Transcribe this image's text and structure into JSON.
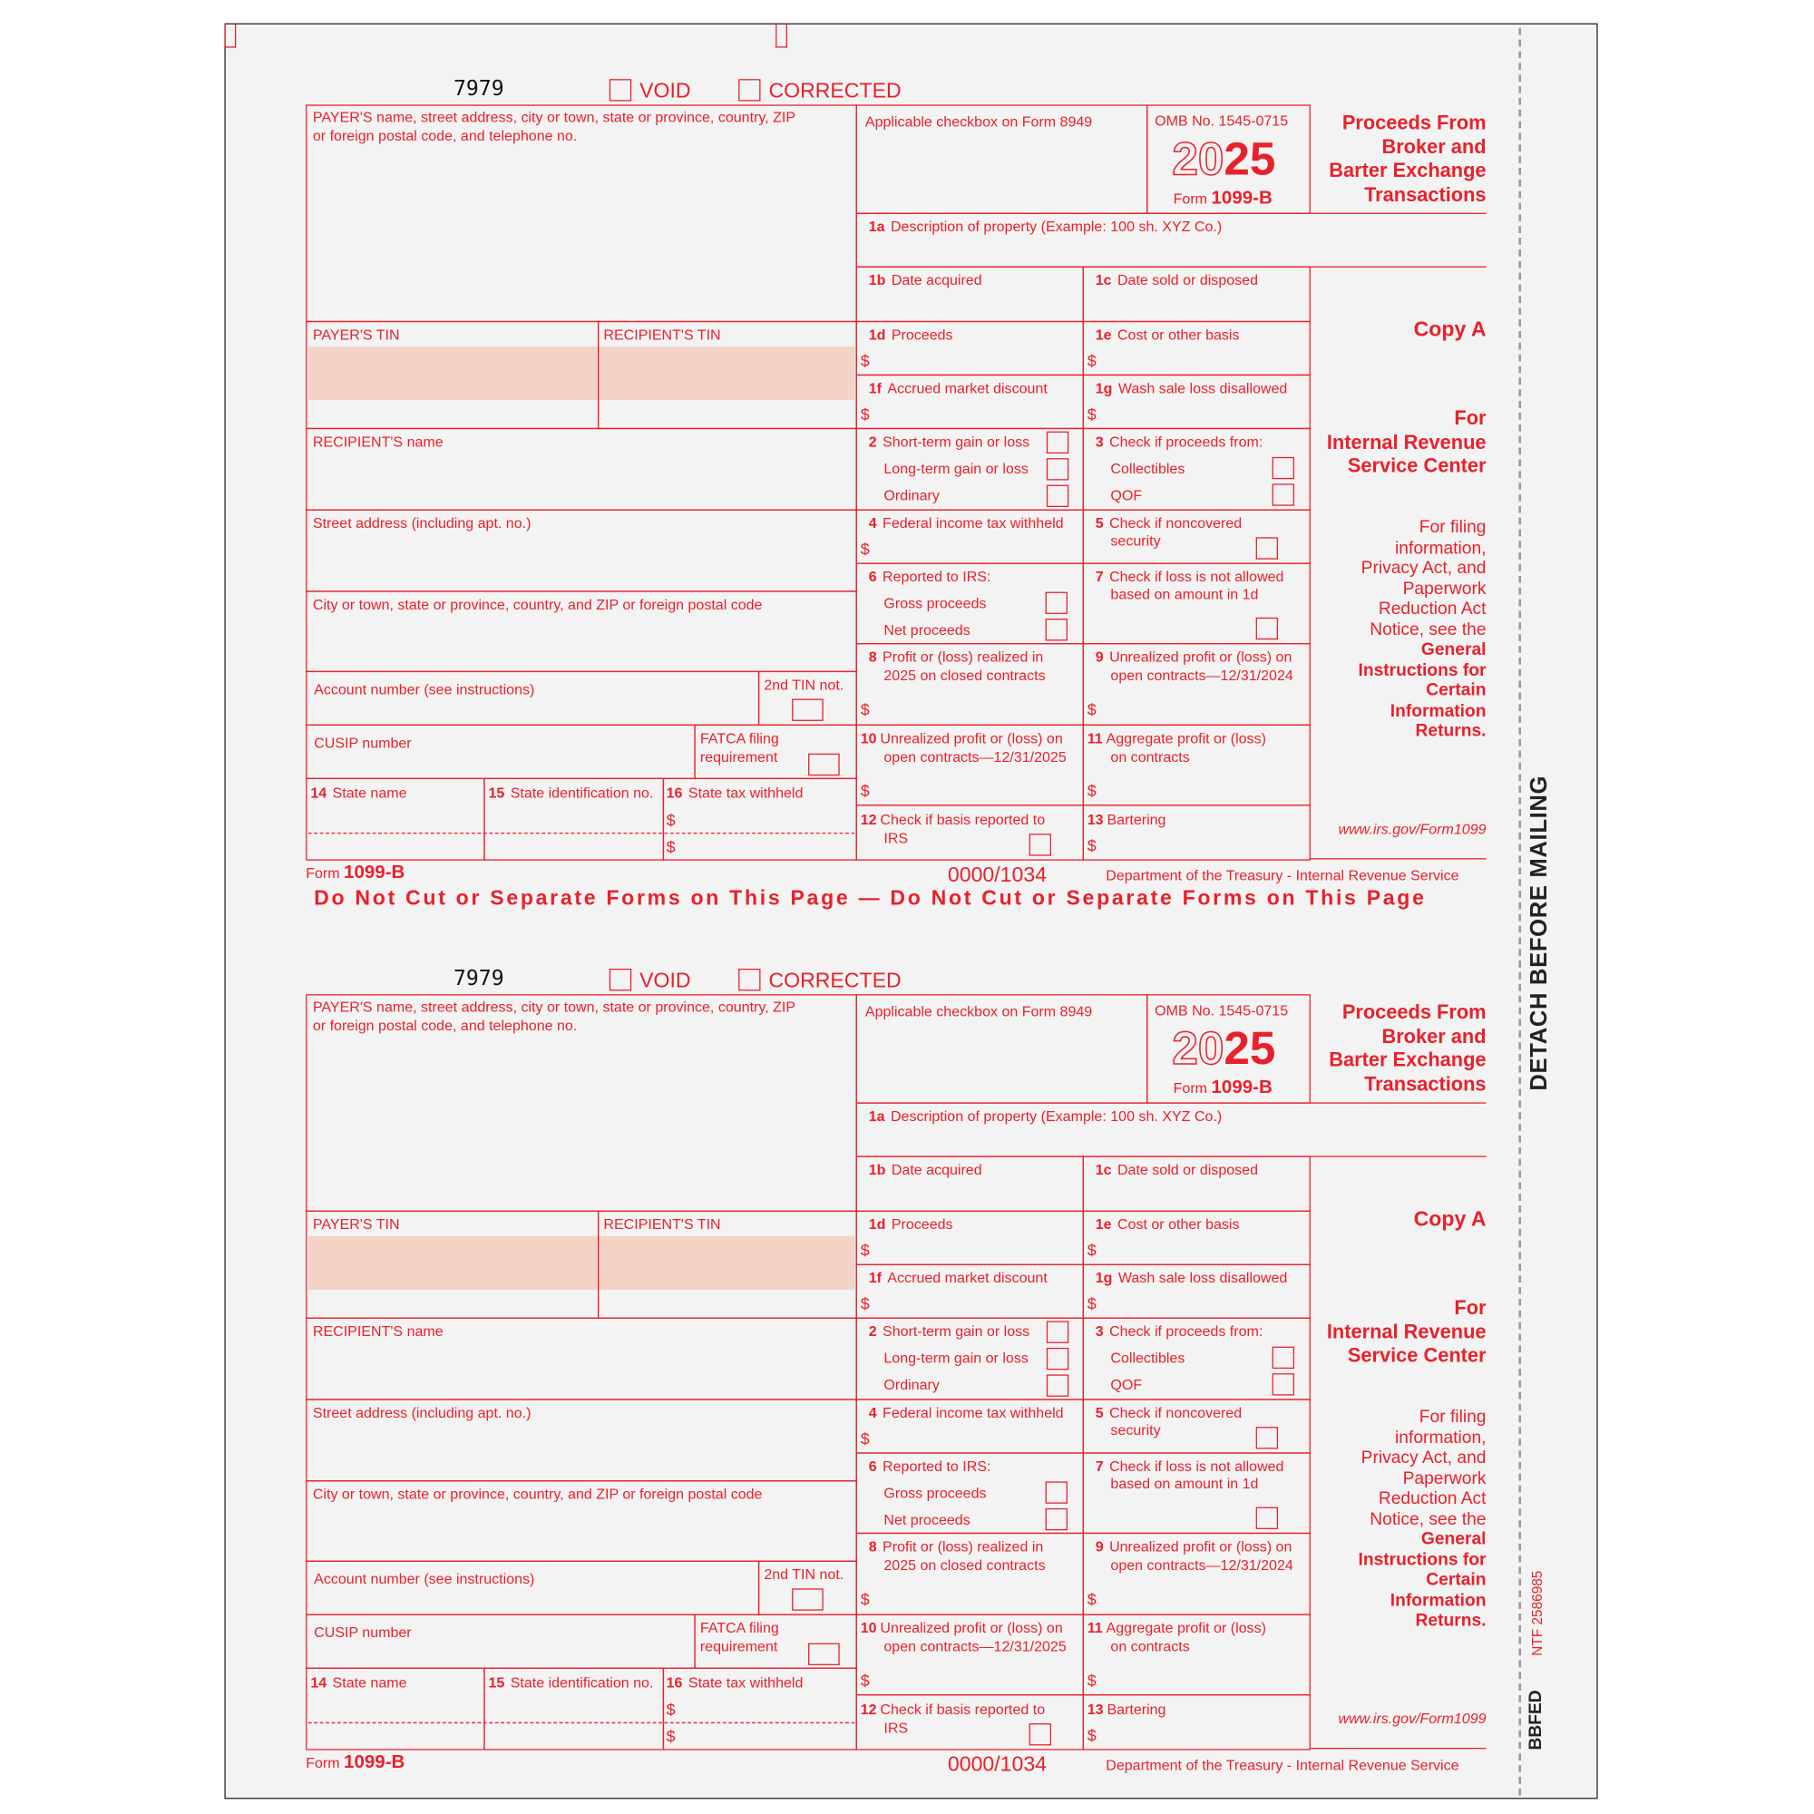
{
  "side": {
    "detach": "DETACH BEFORE MAILING",
    "ntf": "NTF 2586985",
    "code": "BBFED"
  },
  "warning": "Do Not Cut or Separate Forms on This Page — Do Not Cut or Separate Forms on This Page",
  "form": {
    "number": "7979",
    "void": "VOID",
    "corrected": "CORRECTED",
    "payer_name": [
      "PAYER'S name, street address, city or town, state or province, country, ZIP",
      "or foreign postal code, and telephone no."
    ],
    "payer_tin": "PAYER'S TIN",
    "recipient_tin": "RECIPIENT'S TIN",
    "recipient_name": "RECIPIENT'S name",
    "street": "Street address (including apt. no.)",
    "city": "City or town, state or province, country, and ZIP or foreign postal code",
    "account": "Account number (see instructions)",
    "tin2": "2nd TIN not.",
    "cusip": "CUSIP number",
    "fatca": [
      "FATCA filing",
      "requirement"
    ],
    "b14": {
      "n": "14",
      "l": "State name"
    },
    "b15": {
      "n": "15",
      "l": "State identification no."
    },
    "b16": {
      "n": "16",
      "l": "State tax withheld"
    },
    "applicable": "Applicable checkbox on Form 8949",
    "omb": "OMB No. 1545-0715",
    "year_a": "20",
    "year_b": "25",
    "form_word": "Form",
    "form_name": "1099-B",
    "b1a": {
      "n": "1a",
      "l": "Description of property (Example: 100 sh. XYZ Co.)"
    },
    "b1b": {
      "n": "1b",
      "l": "Date acquired"
    },
    "b1c": {
      "n": "1c",
      "l": "Date sold or disposed"
    },
    "b1d": {
      "n": "1d",
      "l": "Proceeds"
    },
    "b1e": {
      "n": "1e",
      "l": "Cost or other basis"
    },
    "b1f": {
      "n": "1f",
      "l": "Accrued market discount"
    },
    "b1g": {
      "n": "1g",
      "l": "Wash sale loss disallowed"
    },
    "b2": {
      "n": "2",
      "l": "Short-term gain or loss",
      "l2": "Long-term gain or loss",
      "l3": "Ordinary"
    },
    "b3": {
      "n": "3",
      "l": "Check if proceeds from:",
      "l2": "Collectibles",
      "l3": "QOF"
    },
    "b4": {
      "n": "4",
      "l": "Federal income tax withheld"
    },
    "b5": {
      "n": "5",
      "l": "Check if noncovered",
      "l2": "security"
    },
    "b6": {
      "n": "6",
      "l": "Reported to IRS:",
      "l2": "Gross proceeds",
      "l3": "Net proceeds"
    },
    "b7": {
      "n": "7",
      "l": "Check if loss is not allowed",
      "l2": "based on amount in 1d"
    },
    "b8": {
      "n": "8",
      "l": "Profit or (loss) realized in",
      "l2": "2025 on closed contracts"
    },
    "b9": {
      "n": "9",
      "l": "Unrealized profit or (loss) on",
      "l2": "open contracts—12/31/2024"
    },
    "b10": {
      "n": "10",
      "l": "Unrealized profit or (loss) on",
      "l2": "open contracts—12/31/2025"
    },
    "b11": {
      "n": "11",
      "l": "Aggregate profit or (loss)",
      "l2": "on contracts"
    },
    "b12": {
      "n": "12",
      "l": "Check if basis reported to",
      "l2": "IRS"
    },
    "b13": {
      "n": "13",
      "l": "Bartering"
    },
    "dollar": "$",
    "title": [
      "Proceeds From",
      "Broker and",
      "Barter Exchange",
      "Transactions"
    ],
    "copy": "Copy A",
    "for": [
      "For",
      "Internal Revenue",
      "Service Center"
    ],
    "notice": [
      "For filing",
      "information,",
      "Privacy Act, and",
      "Paperwork",
      "Reduction Act",
      "Notice, see the"
    ],
    "notice_bold": [
      "General",
      "Instructions for",
      "Certain",
      "Information",
      "Returns."
    ],
    "url": "www.irs.gov/Form1099",
    "footer_code": "0000/1034",
    "dept": "Department of the Treasury - Internal Revenue Service"
  },
  "colors": {
    "red": "#e8212b",
    "shade": "#f2d3c6",
    "paper": "#f3f3f3"
  }
}
